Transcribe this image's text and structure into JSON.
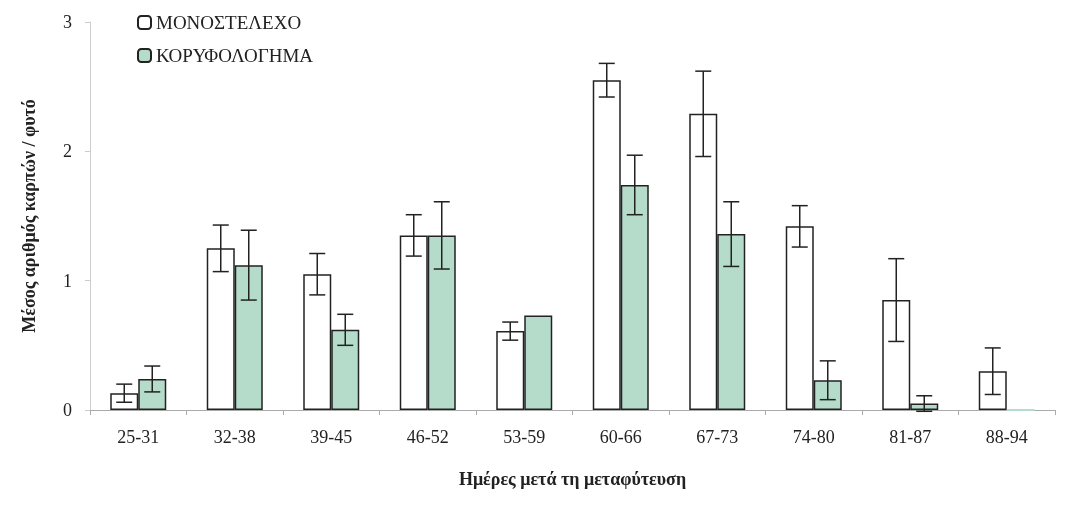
{
  "chart_data": {
    "type": "bar",
    "xlabel": "Ημέρες μετά τη μεταφύτευση",
    "ylabel": "Μέσος αριθμός καρπών / φυτό",
    "categories": [
      "25-31",
      "32-38",
      "39-45",
      "46-52",
      "53-59",
      "60-66",
      "67-73",
      "74-80",
      "81-87",
      "88-94"
    ],
    "series": [
      {
        "name": "ΜΟΝΟΣΤΕΛΕΧΟ",
        "color": "#ffffff",
        "values": [
          0.13,
          1.25,
          1.05,
          1.35,
          0.61,
          2.55,
          2.29,
          1.42,
          0.85,
          0.3
        ],
        "errors": [
          0.07,
          0.18,
          0.16,
          0.16,
          0.07,
          0.13,
          0.33,
          0.16,
          0.32,
          0.18
        ]
      },
      {
        "name": "ΚΟΡΥΦΟΛΟΓΗΜΑ",
        "color": "#b5dccb",
        "values": [
          0.24,
          1.12,
          0.62,
          1.35,
          0.73,
          1.74,
          1.36,
          0.23,
          0.05,
          0
        ],
        "errors": [
          0.1,
          0.27,
          0.12,
          0.26,
          null,
          0.23,
          0.25,
          0.15,
          0.06,
          null
        ]
      }
    ],
    "ylim": [
      0,
      3
    ],
    "yticks": [
      0,
      1,
      2,
      3
    ],
    "grid": false,
    "legend": "top left"
  }
}
